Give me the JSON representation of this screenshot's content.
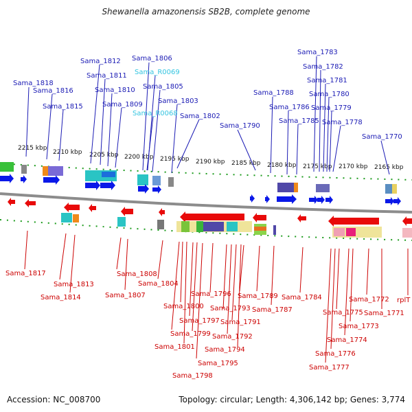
{
  "title": "Shewanella amazonensis SB2B, complete genome",
  "footer": {
    "accession": "Accession: NC_008700",
    "summary": "Topology: circular; Length: 4,306,142 bp; Genes: 3,774"
  },
  "colors": {
    "forward_label": "#1a1ab4",
    "reverse_label": "#cc0000",
    "rna_label": "#33c4e0",
    "forward_arrow": "#0a18e8",
    "reverse_arrow": "#e80a0a",
    "backbone": "#8c8c8c",
    "tick": "#1a9a1a"
  },
  "scale_labels": [
    "2215 kbp",
    "2210 kbp",
    "2205 kbp",
    "2200 kbp",
    "2195 kbp",
    "2190 kbp",
    "2185 kbp",
    "2180 kbp",
    "2175 kbp",
    "2170 kbp",
    "2165 kbp"
  ],
  "top_labels": [
    "Sama_1818",
    "Sama_1816",
    "Sama_1815",
    "Sama_1812",
    "Sama_1811",
    "Sama_1810",
    "Sama_1809",
    "Sama_1806",
    "Sama_R0069",
    "Sama_1805",
    "Sama_R0068",
    "Sama_1803",
    "Sama_1802",
    "Sama_1790",
    "Sama_1788",
    "Sama_1786",
    "Sama_1785",
    "Sama_1783",
    "Sama_1782",
    "Sama_1781",
    "Sama_1780",
    "Sama_1779",
    "Sama_1778",
    "Sama_1770"
  ],
  "bottom_labels": [
    "Sama_1817",
    "Sama_1813",
    "Sama_1814",
    "Sama_1808",
    "Sama_1807",
    "Sama_1804",
    "Sama_1796",
    "Sama_1800",
    "Sama_1797",
    "Sama_1799",
    "Sama_1801",
    "Sama_1798",
    "Sama_1793",
    "Sama_1791",
    "Sama_1792",
    "Sama_1794",
    "Sama_1795",
    "Sama_1789",
    "Sama_1787",
    "Sama_1784",
    "Sama_1775",
    "Sama_1772",
    "Sama_1773",
    "Sama_1774",
    "Sama_1776",
    "Sama_1777",
    "Sama_1771",
    "rplT"
  ]
}
